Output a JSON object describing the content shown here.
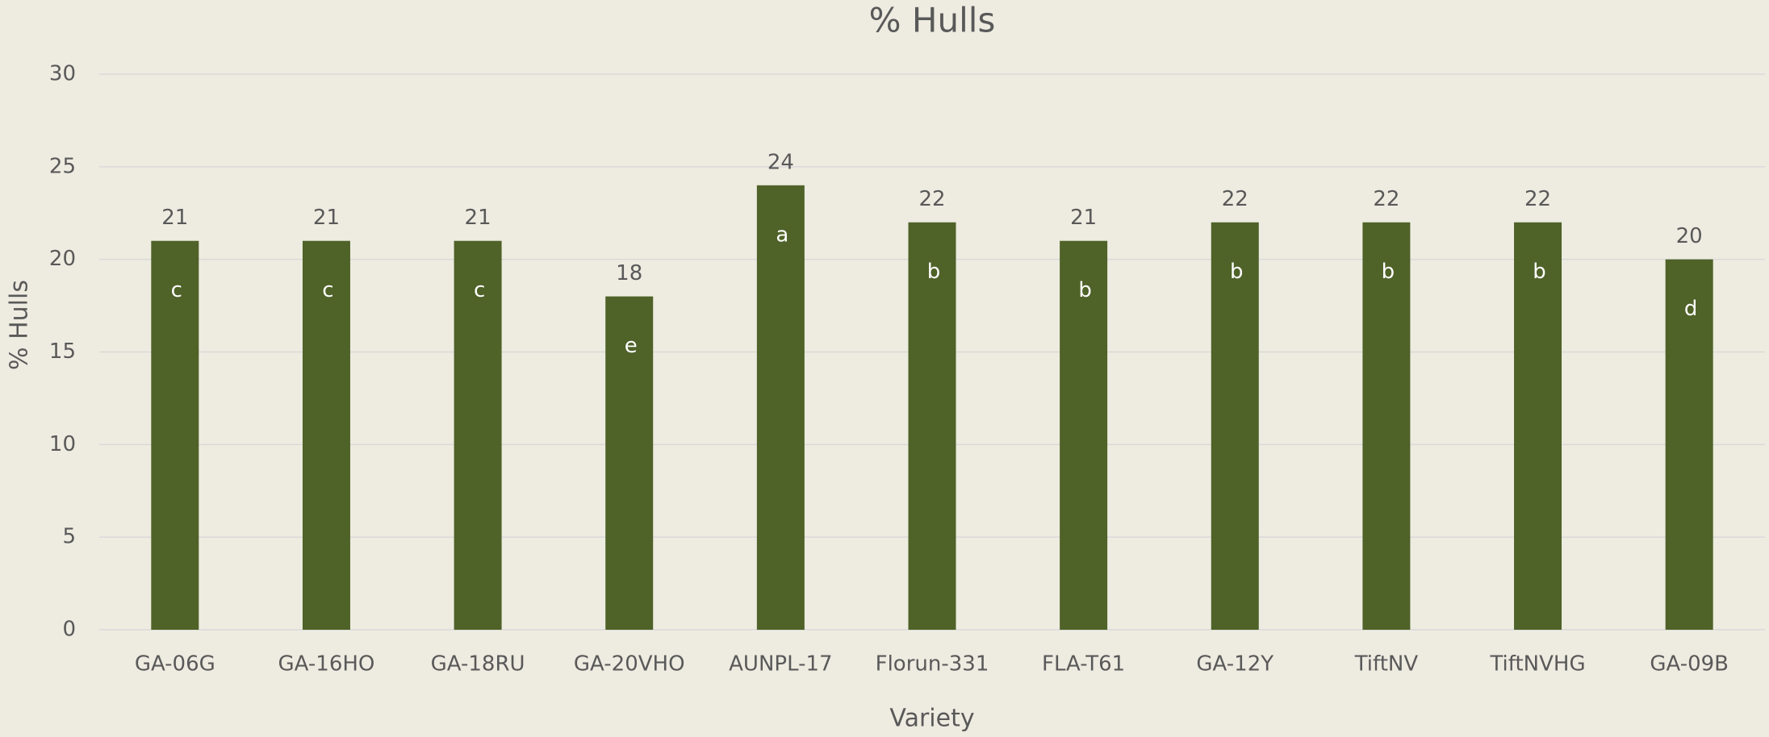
{
  "chart_data": {
    "type": "bar",
    "title": "% Hulls",
    "x_label": "Variety",
    "y_label": "% Hulls",
    "categories": [
      "GA-06G",
      "GA-16HO",
      "GA-18RU",
      "GA-20VHO",
      "AUNPL-17",
      "Florun-331",
      "FLA-T61",
      "GA-12Y",
      "TiftNV",
      "TiftNVHG",
      "GA-09B"
    ],
    "values": [
      21,
      21,
      21,
      18,
      24,
      22,
      21,
      22,
      22,
      22,
      20
    ],
    "annotations": [
      "c",
      "c",
      "c",
      "e",
      "a",
      "b",
      "b",
      "b",
      "b",
      "b",
      "d"
    ],
    "color": "#4f6228",
    "ylim": [
      0,
      30
    ],
    "yticks": [
      0,
      5,
      10,
      15,
      20,
      25,
      30
    ],
    "grid": true
  }
}
